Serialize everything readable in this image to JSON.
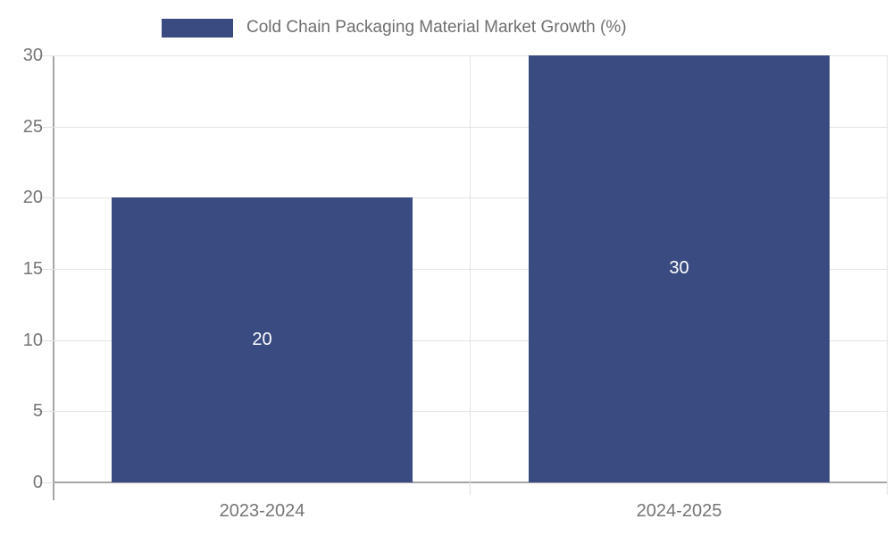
{
  "legend": {
    "label": "Cold Chain Packaging Material Market Growth (%)"
  },
  "chart_data": {
    "type": "bar",
    "title": "Cold Chain Packaging Material Market Growth (%)",
    "categories": [
      "2023-2024",
      "2024-2025"
    ],
    "series": [
      {
        "name": "Cold Chain Packaging Material Market Growth (%)",
        "values": [
          20,
          30
        ]
      }
    ],
    "value_labels": [
      "20",
      "30"
    ],
    "xlabel": "",
    "ylabel": "",
    "ylim": [
      0,
      30
    ],
    "yticks": [
      0,
      5,
      10,
      15,
      20,
      25,
      30
    ],
    "grid": true,
    "legend_position": "top",
    "colors": {
      "bar": "#394b81",
      "tick_text": "#757575",
      "legend_text": "#6f6f6f",
      "gridline": "#e3e3e3",
      "axis_line": "#a6a6a6",
      "value_label_text": "#ffffff",
      "background": "#ffffff"
    }
  }
}
